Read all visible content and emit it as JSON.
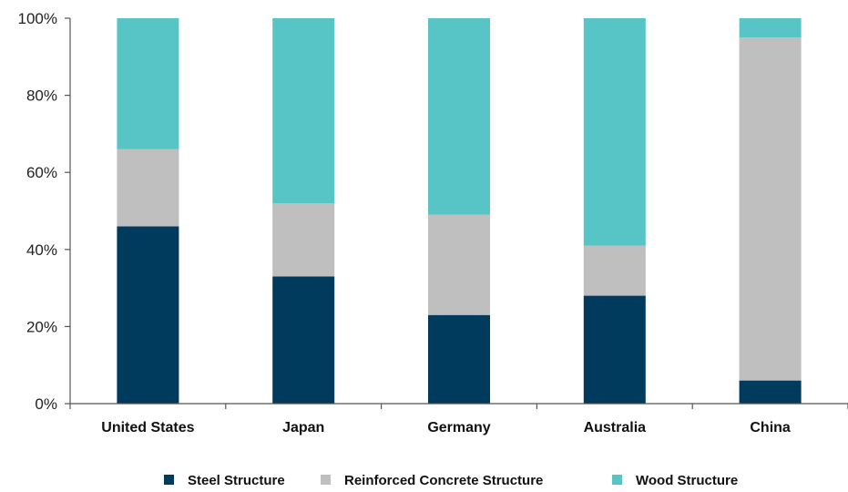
{
  "chart_data": {
    "type": "bar",
    "stacked": true,
    "categories": [
      "United States",
      "Japan",
      "Germany",
      "Australia",
      "China"
    ],
    "series": [
      {
        "name": "Steel Structure",
        "color": "#003a5d",
        "values": [
          46,
          33,
          23,
          28,
          6
        ]
      },
      {
        "name": "Reinforced Concrete Structure",
        "color": "#bfbfbf",
        "values": [
          20,
          19,
          26,
          13,
          89
        ]
      },
      {
        "name": "Wood Structure",
        "color": "#57c5c5",
        "values": [
          34,
          48,
          51,
          59,
          5
        ]
      }
    ],
    "ylim": [
      0,
      100
    ],
    "yticks": [
      0,
      20,
      40,
      60,
      80,
      100
    ],
    "ytick_labels": [
      "0%",
      "20%",
      "40%",
      "60%",
      "80%",
      "100%"
    ],
    "grid": false,
    "legend_position": "bottom"
  }
}
